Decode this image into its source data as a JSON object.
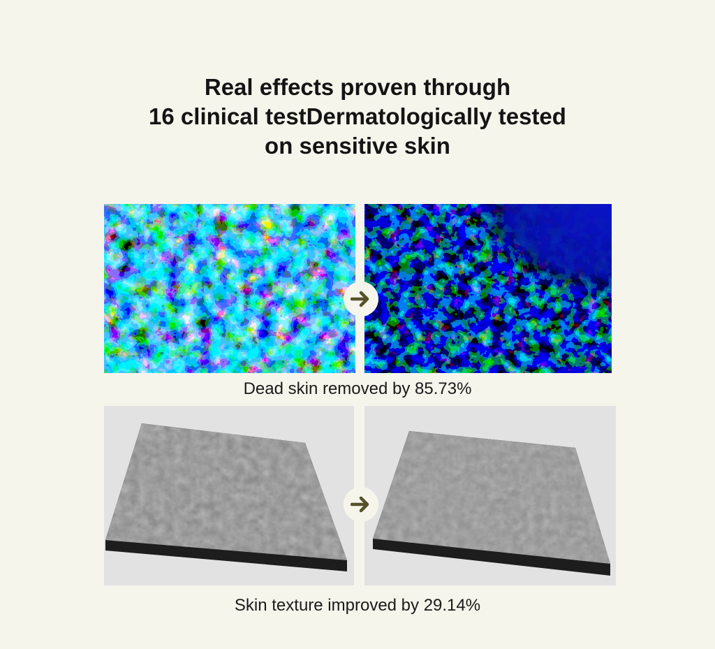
{
  "headline": {
    "line1": "Real effects proven through",
    "line2": "16 clinical testDermatologically tested",
    "line3": "on sensitive skin"
  },
  "comparisons": [
    {
      "caption": "Dead skin removed by  85.73%"
    },
    {
      "caption": "Skin texture improved by 29.14%"
    }
  ],
  "icons": {
    "arrow": "arrow-right-icon"
  },
  "colors": {
    "background": "#f6f5ec",
    "arrow": "#55512a",
    "heatmap_deep": "#000a6a",
    "heatmap_cyan": "#4fd3ff",
    "heatmap_hot": "#e63a1a",
    "texture_surface": "#8a8a8a",
    "texture_backdrop": "#e2e2e2"
  }
}
